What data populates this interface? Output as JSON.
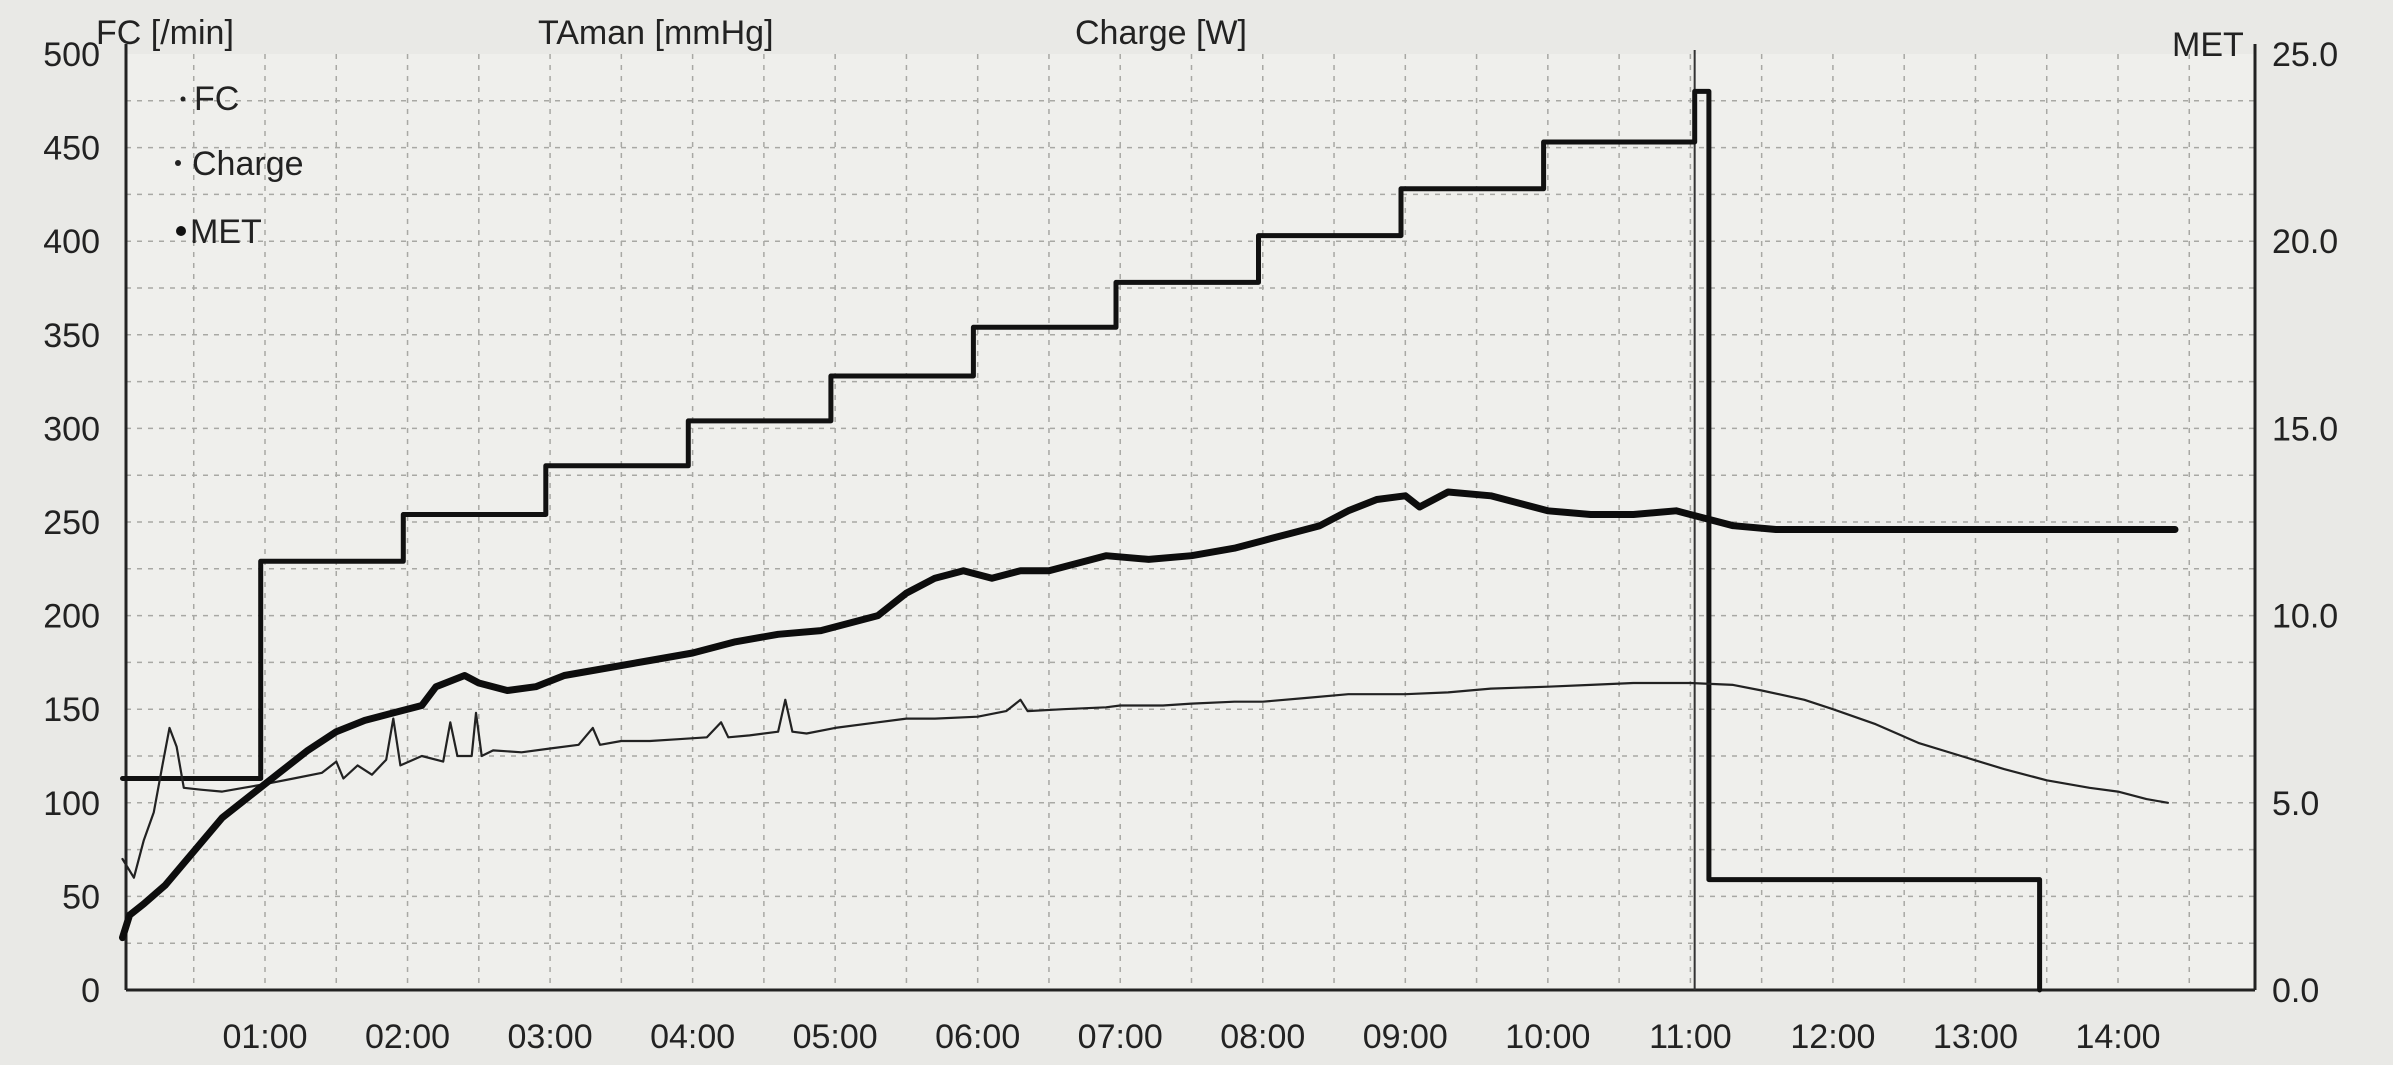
{
  "chart_data": {
    "type": "line",
    "headers": {
      "left_axis": "FC [/min]",
      "middle": "TAman [mmHg]",
      "charge": "Charge [W]",
      "right_axis": "MET"
    },
    "left_axis": {
      "ylim": [
        0,
        500
      ],
      "ticks": [
        "0",
        "50",
        "100",
        "150",
        "200",
        "250",
        "300",
        "350",
        "400",
        "450",
        "500"
      ]
    },
    "right_axis": {
      "ylim": [
        0,
        25
      ],
      "ticks": [
        "0.0",
        "5.0",
        "10.0",
        "15.0",
        "20.0",
        "25.0"
      ]
    },
    "x_axis": {
      "unit": "minutes",
      "xlim": [
        0,
        14.75
      ],
      "ticks": [
        {
          "x": 1,
          "label": "01:00"
        },
        {
          "x": 2,
          "label": "02:00"
        },
        {
          "x": 3,
          "label": "03:00"
        },
        {
          "x": 4,
          "label": "04:00"
        },
        {
          "x": 5,
          "label": "05:00"
        },
        {
          "x": 6,
          "label": "06:00"
        },
        {
          "x": 7,
          "label": "07:00"
        },
        {
          "x": 8,
          "label": "08:00"
        },
        {
          "x": 9,
          "label": "09:00"
        },
        {
          "x": 10,
          "label": "10:00"
        },
        {
          "x": 11,
          "label": "11:00"
        },
        {
          "x": 12,
          "label": "12:00"
        },
        {
          "x": 13,
          "label": "13:00"
        },
        {
          "x": 14,
          "label": "14:00"
        }
      ]
    },
    "grid": true,
    "legend": {
      "placement": "top-left",
      "entries": [
        {
          "name": "FC"
        },
        {
          "name": "Charge"
        },
        {
          "name": "MET"
        }
      ]
    },
    "series": [
      {
        "name": "Charge",
        "axis": "left",
        "style": "step",
        "points": [
          [
            0.0,
            113
          ],
          [
            0.97,
            113
          ],
          [
            0.97,
            229
          ],
          [
            1.97,
            229
          ],
          [
            1.97,
            254
          ],
          [
            2.97,
            254
          ],
          [
            2.97,
            280
          ],
          [
            3.97,
            280
          ],
          [
            3.97,
            304
          ],
          [
            4.97,
            304
          ],
          [
            4.97,
            328
          ],
          [
            5.97,
            328
          ],
          [
            5.97,
            354
          ],
          [
            6.97,
            354
          ],
          [
            6.97,
            378
          ],
          [
            7.97,
            378
          ],
          [
            7.97,
            403
          ],
          [
            8.97,
            403
          ],
          [
            8.97,
            428
          ],
          [
            9.97,
            428
          ],
          [
            9.97,
            453
          ],
          [
            11.03,
            453
          ],
          [
            11.03,
            480
          ],
          [
            11.13,
            480
          ],
          [
            11.13,
            59
          ],
          [
            13.45,
            59
          ],
          [
            13.45,
            -10
          ]
        ]
      },
      {
        "name": "FC",
        "axis": "left",
        "style": "line",
        "points": [
          [
            0.0,
            70
          ],
          [
            0.08,
            60
          ],
          [
            0.15,
            80
          ],
          [
            0.22,
            95
          ],
          [
            0.28,
            120
          ],
          [
            0.33,
            140
          ],
          [
            0.38,
            130
          ],
          [
            0.43,
            108
          ],
          [
            0.55,
            107
          ],
          [
            0.7,
            106
          ],
          [
            0.85,
            108
          ],
          [
            1.0,
            110
          ],
          [
            1.2,
            113
          ],
          [
            1.4,
            116
          ],
          [
            1.5,
            122
          ],
          [
            1.55,
            113
          ],
          [
            1.65,
            120
          ],
          [
            1.75,
            115
          ],
          [
            1.85,
            123
          ],
          [
            1.9,
            145
          ],
          [
            1.95,
            120
          ],
          [
            2.1,
            125
          ],
          [
            2.25,
            122
          ],
          [
            2.3,
            143
          ],
          [
            2.35,
            125
          ],
          [
            2.45,
            125
          ],
          [
            2.48,
            148
          ],
          [
            2.52,
            125
          ],
          [
            2.6,
            128
          ],
          [
            2.8,
            127
          ],
          [
            3.0,
            129
          ],
          [
            3.2,
            131
          ],
          [
            3.3,
            140
          ],
          [
            3.35,
            131
          ],
          [
            3.5,
            133
          ],
          [
            3.7,
            133
          ],
          [
            3.9,
            134
          ],
          [
            4.1,
            135
          ],
          [
            4.2,
            143
          ],
          [
            4.25,
            135
          ],
          [
            4.4,
            136
          ],
          [
            4.6,
            138
          ],
          [
            4.65,
            155
          ],
          [
            4.7,
            138
          ],
          [
            4.8,
            137
          ],
          [
            5.0,
            140
          ],
          [
            5.3,
            143
          ],
          [
            5.5,
            145
          ],
          [
            5.7,
            145
          ],
          [
            6.0,
            146
          ],
          [
            6.2,
            149
          ],
          [
            6.3,
            155
          ],
          [
            6.35,
            149
          ],
          [
            6.6,
            150
          ],
          [
            6.9,
            151
          ],
          [
            7.0,
            152
          ],
          [
            7.3,
            152
          ],
          [
            7.5,
            153
          ],
          [
            7.8,
            154
          ],
          [
            8.0,
            154
          ],
          [
            8.3,
            156
          ],
          [
            8.6,
            158
          ],
          [
            9.0,
            158
          ],
          [
            9.3,
            159
          ],
          [
            9.6,
            161
          ],
          [
            10.0,
            162
          ],
          [
            10.3,
            163
          ],
          [
            10.6,
            164
          ],
          [
            11.0,
            164
          ],
          [
            11.3,
            163
          ],
          [
            11.5,
            160
          ],
          [
            11.8,
            155
          ],
          [
            12.0,
            150
          ],
          [
            12.3,
            142
          ],
          [
            12.6,
            132
          ],
          [
            12.9,
            125
          ],
          [
            13.2,
            118
          ],
          [
            13.5,
            112
          ],
          [
            13.8,
            108
          ],
          [
            14.0,
            106
          ],
          [
            14.2,
            102
          ],
          [
            14.35,
            100
          ]
        ]
      },
      {
        "name": "MET",
        "axis": "right",
        "style": "line",
        "points": [
          [
            0.0,
            1.4
          ],
          [
            0.05,
            2.0
          ],
          [
            0.15,
            2.3
          ],
          [
            0.3,
            2.8
          ],
          [
            0.5,
            3.7
          ],
          [
            0.7,
            4.6
          ],
          [
            0.9,
            5.2
          ],
          [
            1.1,
            5.8
          ],
          [
            1.3,
            6.4
          ],
          [
            1.5,
            6.9
          ],
          [
            1.7,
            7.2
          ],
          [
            1.9,
            7.4
          ],
          [
            2.1,
            7.6
          ],
          [
            2.2,
            8.1
          ],
          [
            2.4,
            8.4
          ],
          [
            2.5,
            8.2
          ],
          [
            2.7,
            8.0
          ],
          [
            2.9,
            8.1
          ],
          [
            3.1,
            8.4
          ],
          [
            3.4,
            8.6
          ],
          [
            3.7,
            8.8
          ],
          [
            4.0,
            9.0
          ],
          [
            4.3,
            9.3
          ],
          [
            4.6,
            9.5
          ],
          [
            4.9,
            9.6
          ],
          [
            5.1,
            9.8
          ],
          [
            5.3,
            10.0
          ],
          [
            5.5,
            10.6
          ],
          [
            5.7,
            11.0
          ],
          [
            5.9,
            11.2
          ],
          [
            6.1,
            11.0
          ],
          [
            6.3,
            11.2
          ],
          [
            6.5,
            11.2
          ],
          [
            6.7,
            11.4
          ],
          [
            6.9,
            11.6
          ],
          [
            7.2,
            11.5
          ],
          [
            7.5,
            11.6
          ],
          [
            7.8,
            11.8
          ],
          [
            8.0,
            12.0
          ],
          [
            8.2,
            12.2
          ],
          [
            8.4,
            12.4
          ],
          [
            8.6,
            12.8
          ],
          [
            8.8,
            13.1
          ],
          [
            9.0,
            13.2
          ],
          [
            9.1,
            12.9
          ],
          [
            9.3,
            13.3
          ],
          [
            9.6,
            13.2
          ],
          [
            9.8,
            13.0
          ],
          [
            10.0,
            12.8
          ],
          [
            10.3,
            12.7
          ],
          [
            10.6,
            12.7
          ],
          [
            10.9,
            12.8
          ],
          [
            11.1,
            12.6
          ],
          [
            11.3,
            12.4
          ],
          [
            11.6,
            12.3
          ],
          [
            12.0,
            12.3
          ],
          [
            12.5,
            12.3
          ],
          [
            13.0,
            12.3
          ],
          [
            13.5,
            12.3
          ],
          [
            14.0,
            12.3
          ],
          [
            14.4,
            12.3
          ]
        ]
      }
    ],
    "markers": [
      {
        "x": 11.03,
        "label": ""
      }
    ]
  }
}
